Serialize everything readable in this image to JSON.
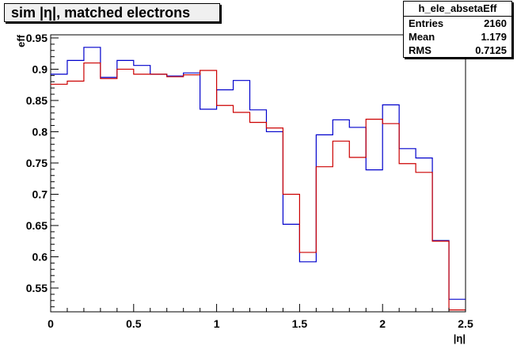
{
  "chart_data": {
    "type": "line",
    "title": "sim |η|, matched electrons",
    "xlabel": "|η|",
    "ylabel": "eff",
    "xlim": [
      0,
      2.5
    ],
    "ylim": [
      0.512,
      0.955
    ],
    "xticks": [
      "0",
      "0.5",
      "1",
      "1.5",
      "2",
      "2.5"
    ],
    "yticks": [
      "0.55",
      "0.6",
      "0.65",
      "0.7",
      "0.75",
      "0.8",
      "0.85",
      "0.9",
      "0.95"
    ],
    "bin_edges": [
      0,
      0.1,
      0.2,
      0.3,
      0.4,
      0.5,
      0.6,
      0.7,
      0.8,
      0.9,
      1.0,
      1.1,
      1.2,
      1.3,
      1.4,
      1.5,
      1.6,
      1.7,
      1.8,
      1.9,
      2.0,
      2.1,
      2.2,
      2.3,
      2.4,
      2.5
    ],
    "series": [
      {
        "color": "#0000cc",
        "values": [
          0.892,
          0.914,
          0.935,
          0.887,
          0.914,
          0.906,
          0.892,
          0.889,
          0.894,
          0.836,
          0.867,
          0.882,
          0.835,
          0.8,
          0.652,
          0.592,
          0.795,
          0.819,
          0.807,
          0.739,
          0.843,
          0.773,
          0.758,
          0.626,
          0.532
        ]
      },
      {
        "color": "#cc0000",
        "values": [
          0.876,
          0.881,
          0.91,
          0.885,
          0.9,
          0.892,
          0.892,
          0.888,
          0.891,
          0.898,
          0.842,
          0.831,
          0.815,
          0.806,
          0.7,
          0.607,
          0.744,
          0.785,
          0.759,
          0.82,
          0.813,
          0.749,
          0.735,
          0.625,
          0.515
        ]
      }
    ]
  },
  "stats": {
    "title": "h_ele_absetaEff",
    "rows": [
      {
        "label": "Entries",
        "value": "2160"
      },
      {
        "label": "Mean",
        "value": "1.179"
      },
      {
        "label": "RMS",
        "value": "0.7125"
      }
    ]
  }
}
